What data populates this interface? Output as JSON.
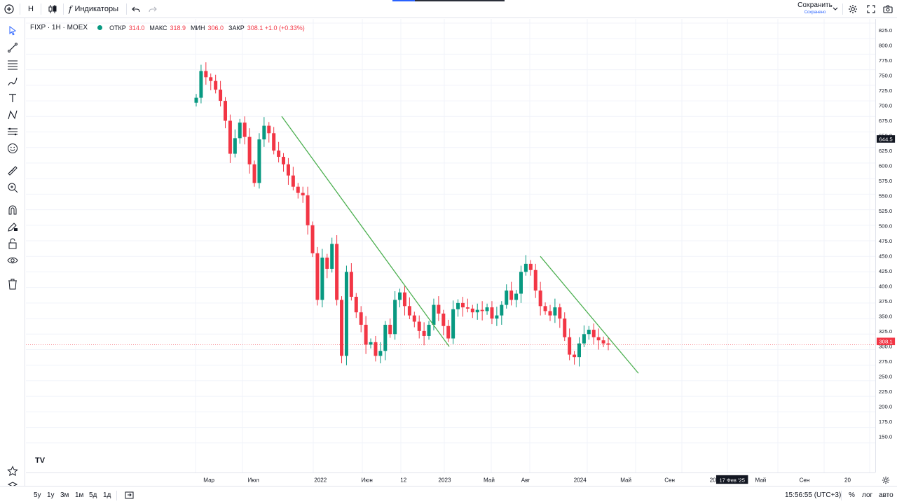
{
  "toolbar": {
    "interval": "Н",
    "indicators_label": "Индикаторы",
    "save_label": "Сохранить",
    "save_sublabel": "Сохранено"
  },
  "legend": {
    "symbol": "FIXP · 1Н · MOEX",
    "open_key": "ОТКР",
    "open_val": "314.0",
    "high_key": "МАКС",
    "high_val": "318.9",
    "low_key": "МИН",
    "low_val": "306.0",
    "close_key": "ЗАКР",
    "close_val": "308.1 +1.0 (+0.33%)"
  },
  "bottom": {
    "ranges": [
      "5у",
      "1у",
      "3м",
      "1м",
      "5д",
      "1д"
    ],
    "time": "15:56:55 (UTC+3)",
    "percent": "%",
    "log": "лог",
    "auto": "авто"
  },
  "colors": {
    "up": "#089981",
    "down": "#f23645",
    "trend": "#4caf50",
    "accent": "#2962ff"
  },
  "chart_data": {
    "type": "candlestick",
    "ylim": [
      125,
      825
    ],
    "y_ticks": [
      "825.0",
      "800.0",
      "775.0",
      "750.0",
      "725.0",
      "700.0",
      "675.0",
      "650.0",
      "625.0",
      "600.0",
      "575.0",
      "550.0",
      "525.0",
      "500.0",
      "475.0",
      "450.0",
      "425.0",
      "400.0",
      "375.0",
      "350.0",
      "325.0",
      "300.0",
      "275.0",
      "250.0",
      "225.0",
      "200.0",
      "175.0",
      "150.0"
    ],
    "x_labels": [
      "Мар",
      "Июл",
      "2022",
      "Июн",
      "12",
      "2023",
      "Май",
      "Авг",
      "2024",
      "Май",
      "Сен",
      "20",
      "Май",
      "Сен",
      "20"
    ],
    "crosshair_date": "17 Фев '25",
    "last_price": 308.1,
    "last_price_label": "308.1",
    "marker_price": 644.5,
    "marker_price_label": "644.5",
    "series_close": [
      705,
      748,
      738,
      732,
      718,
      700,
      668,
      615,
      640,
      665,
      642,
      598,
      568,
      638,
      660,
      648,
      620,
      610,
      598,
      580,
      562,
      552,
      548,
      500,
      455,
      380,
      448,
      430,
      470,
      380,
      290,
      425,
      385,
      360,
      340,
      308,
      312,
      290,
      298,
      340,
      325,
      380,
      392,
      370,
      355,
      345,
      330,
      322,
      340,
      372,
      358,
      338,
      318,
      365,
      375,
      368,
      366,
      360,
      364,
      362,
      368,
      350,
      355,
      372,
      395,
      380,
      390,
      425,
      438,
      428,
      395,
      370,
      362,
      355,
      368,
      350,
      320,
      292,
      288,
      310,
      325,
      332,
      320,
      315,
      310,
      308
    ],
    "trendlines": [
      {
        "from": [
          402,
          675
        ],
        "to": [
          641,
          305
        ]
      },
      {
        "from": [
          771,
          450
        ],
        "to": [
          911,
          262
        ]
      }
    ]
  }
}
